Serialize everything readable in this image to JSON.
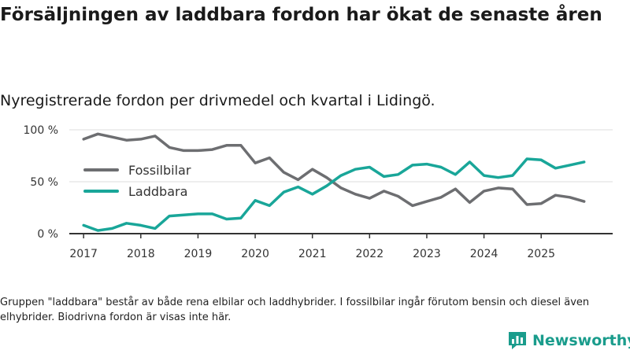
{
  "title": "Försäljningen av laddbara fordon har ökat de senaste åren",
  "subtitle": "Nyregistrerade fordon per drivmedel och kvartal i Lidingö.",
  "note": "Gruppen \"laddbara\" består av både rena elbilar och laddhybrider. I fossilbilar ingår förutom bensin och diesel även elhybrider. Biodrivna fordon är visas inte här.",
  "brand": "Newsworthy",
  "chart_data": {
    "type": "line",
    "title": "Försäljningen av laddbara fordon har ökat de senaste åren",
    "xlabel": "",
    "ylabel": "",
    "ylim": [
      0,
      100
    ],
    "xlim": [
      2016.75,
      2026.25
    ],
    "yticks": [
      0,
      50,
      100
    ],
    "ytick_labels": [
      "0 %",
      "50 %",
      "100 %"
    ],
    "xticks": [
      2017,
      2018,
      2019,
      2020,
      2021,
      2022,
      2023,
      2024,
      2025
    ],
    "xtick_labels": [
      "2017",
      "2018",
      "2019",
      "2020",
      "2021",
      "2022",
      "2023",
      "2024",
      "2025"
    ],
    "grid": true,
    "legend_position": "middle-left",
    "x": [
      2017.0,
      2017.25,
      2017.5,
      2017.75,
      2018.0,
      2018.25,
      2018.5,
      2018.75,
      2019.0,
      2019.25,
      2019.5,
      2019.75,
      2020.0,
      2020.25,
      2020.5,
      2020.75,
      2021.0,
      2021.25,
      2021.5,
      2021.75,
      2022.0,
      2022.25,
      2022.5,
      2022.75,
      2023.0,
      2023.25,
      2023.5,
      2023.75,
      2024.0,
      2024.25,
      2024.5,
      2024.75,
      2025.0,
      2025.25,
      2025.5,
      2025.75
    ],
    "series": [
      {
        "name": "Fossilbilar",
        "color": "#6d6e71",
        "values": [
          91,
          96,
          93,
          90,
          91,
          94,
          83,
          80,
          80,
          81,
          85,
          85,
          68,
          73,
          59,
          52,
          62,
          54,
          44,
          38,
          34,
          41,
          36,
          27,
          31,
          35,
          43,
          30,
          41,
          44,
          43,
          28,
          29,
          37,
          35,
          31
        ]
      },
      {
        "name": "Laddbara",
        "color": "#19a699",
        "values": [
          8,
          3,
          5,
          10,
          8,
          5,
          17,
          18,
          19,
          19,
          14,
          15,
          32,
          27,
          40,
          45,
          38,
          46,
          56,
          62,
          64,
          55,
          57,
          66,
          67,
          64,
          57,
          69,
          56,
          54,
          56,
          72,
          71,
          63,
          66,
          69
        ]
      }
    ]
  }
}
